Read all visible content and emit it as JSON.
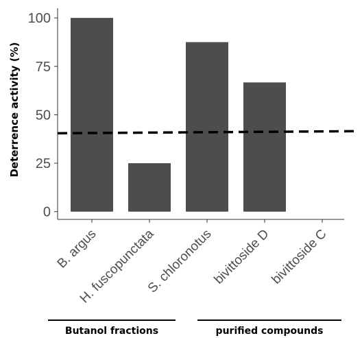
{
  "chart_data": {
    "type": "bar",
    "categories": [
      "B. argus",
      "H. fuscopunctata",
      "S. chloronotus",
      "bivittoside D",
      "bivittoside C"
    ],
    "values": [
      100,
      25,
      87.5,
      66.7,
      0
    ],
    "title": "",
    "xlabel": "",
    "ylabel": "Deterrence activity (%)",
    "ylim": [
      -4,
      105
    ],
    "yticks": [
      0,
      25,
      50,
      75,
      100
    ],
    "grid": false,
    "bar_color": "#4d4d4d",
    "reference_line": {
      "y": 41,
      "style": "dashed",
      "color": "#000000"
    },
    "groups": [
      {
        "label": "Butanol fractions",
        "categories": [
          "B. argus",
          "H. fuscopunctata"
        ]
      },
      {
        "label": "purified compounds",
        "categories": [
          "S. chloronotus",
          "bivittoside D",
          "bivittoside C"
        ]
      }
    ]
  }
}
